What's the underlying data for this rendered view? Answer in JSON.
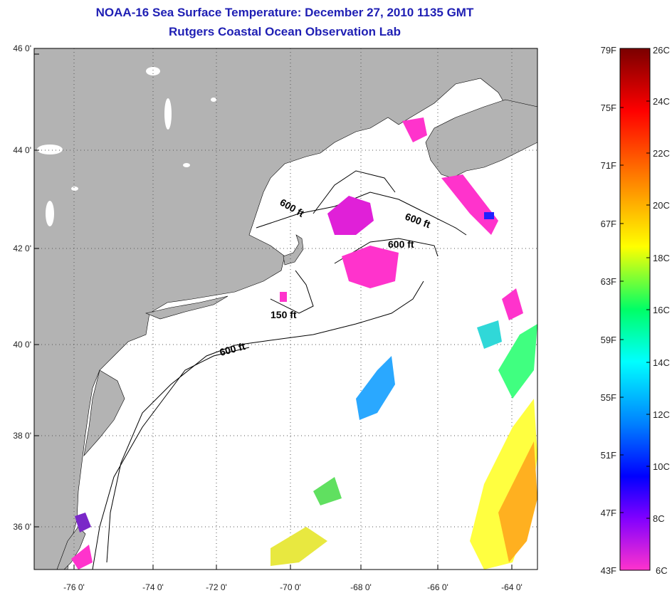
{
  "title": "NOAA-16 Sea Surface Temperature:  December 27, 2010 1135 GMT",
  "subtitle": "Rutgers Coastal Ocean Observation Lab",
  "map": {
    "lon_range": [
      -77,
      -63
    ],
    "lat_range": [
      35,
      46
    ],
    "lat_ticks": [
      "46 0'",
      "44 0'",
      "42 0'",
      "40 0'",
      "38 0'",
      "36 0'"
    ],
    "lon_ticks": [
      "-76 0'",
      "-74 0'",
      "-72 0'",
      "-70 0'",
      "-68 0'",
      "-66 0'",
      "-64 0'"
    ],
    "isobath_labels": [
      "600 ft",
      "600 ft",
      "600 ft",
      "150 ft",
      "600 ft"
    ],
    "colors": {
      "land": "#b3b3b3",
      "ocean": "#ffffff",
      "grid": "#555555"
    }
  },
  "colorbar": {
    "fahrenheit": [
      "79F",
      "75F",
      "71F",
      "67F",
      "63F",
      "59F",
      "55F",
      "51F",
      "47F",
      "43F"
    ],
    "celsius": [
      "26C",
      "24C",
      "22C",
      "20C",
      "18C",
      "16C",
      "14C",
      "12C",
      "10C",
      "8C",
      "6C"
    ],
    "gradient": [
      "#7a0000",
      "#ff0000",
      "#ff8000",
      "#ffff00",
      "#00ff66",
      "#00ffff",
      "#0080ff",
      "#0000ff",
      "#8000ff",
      "#ff33cc"
    ]
  }
}
